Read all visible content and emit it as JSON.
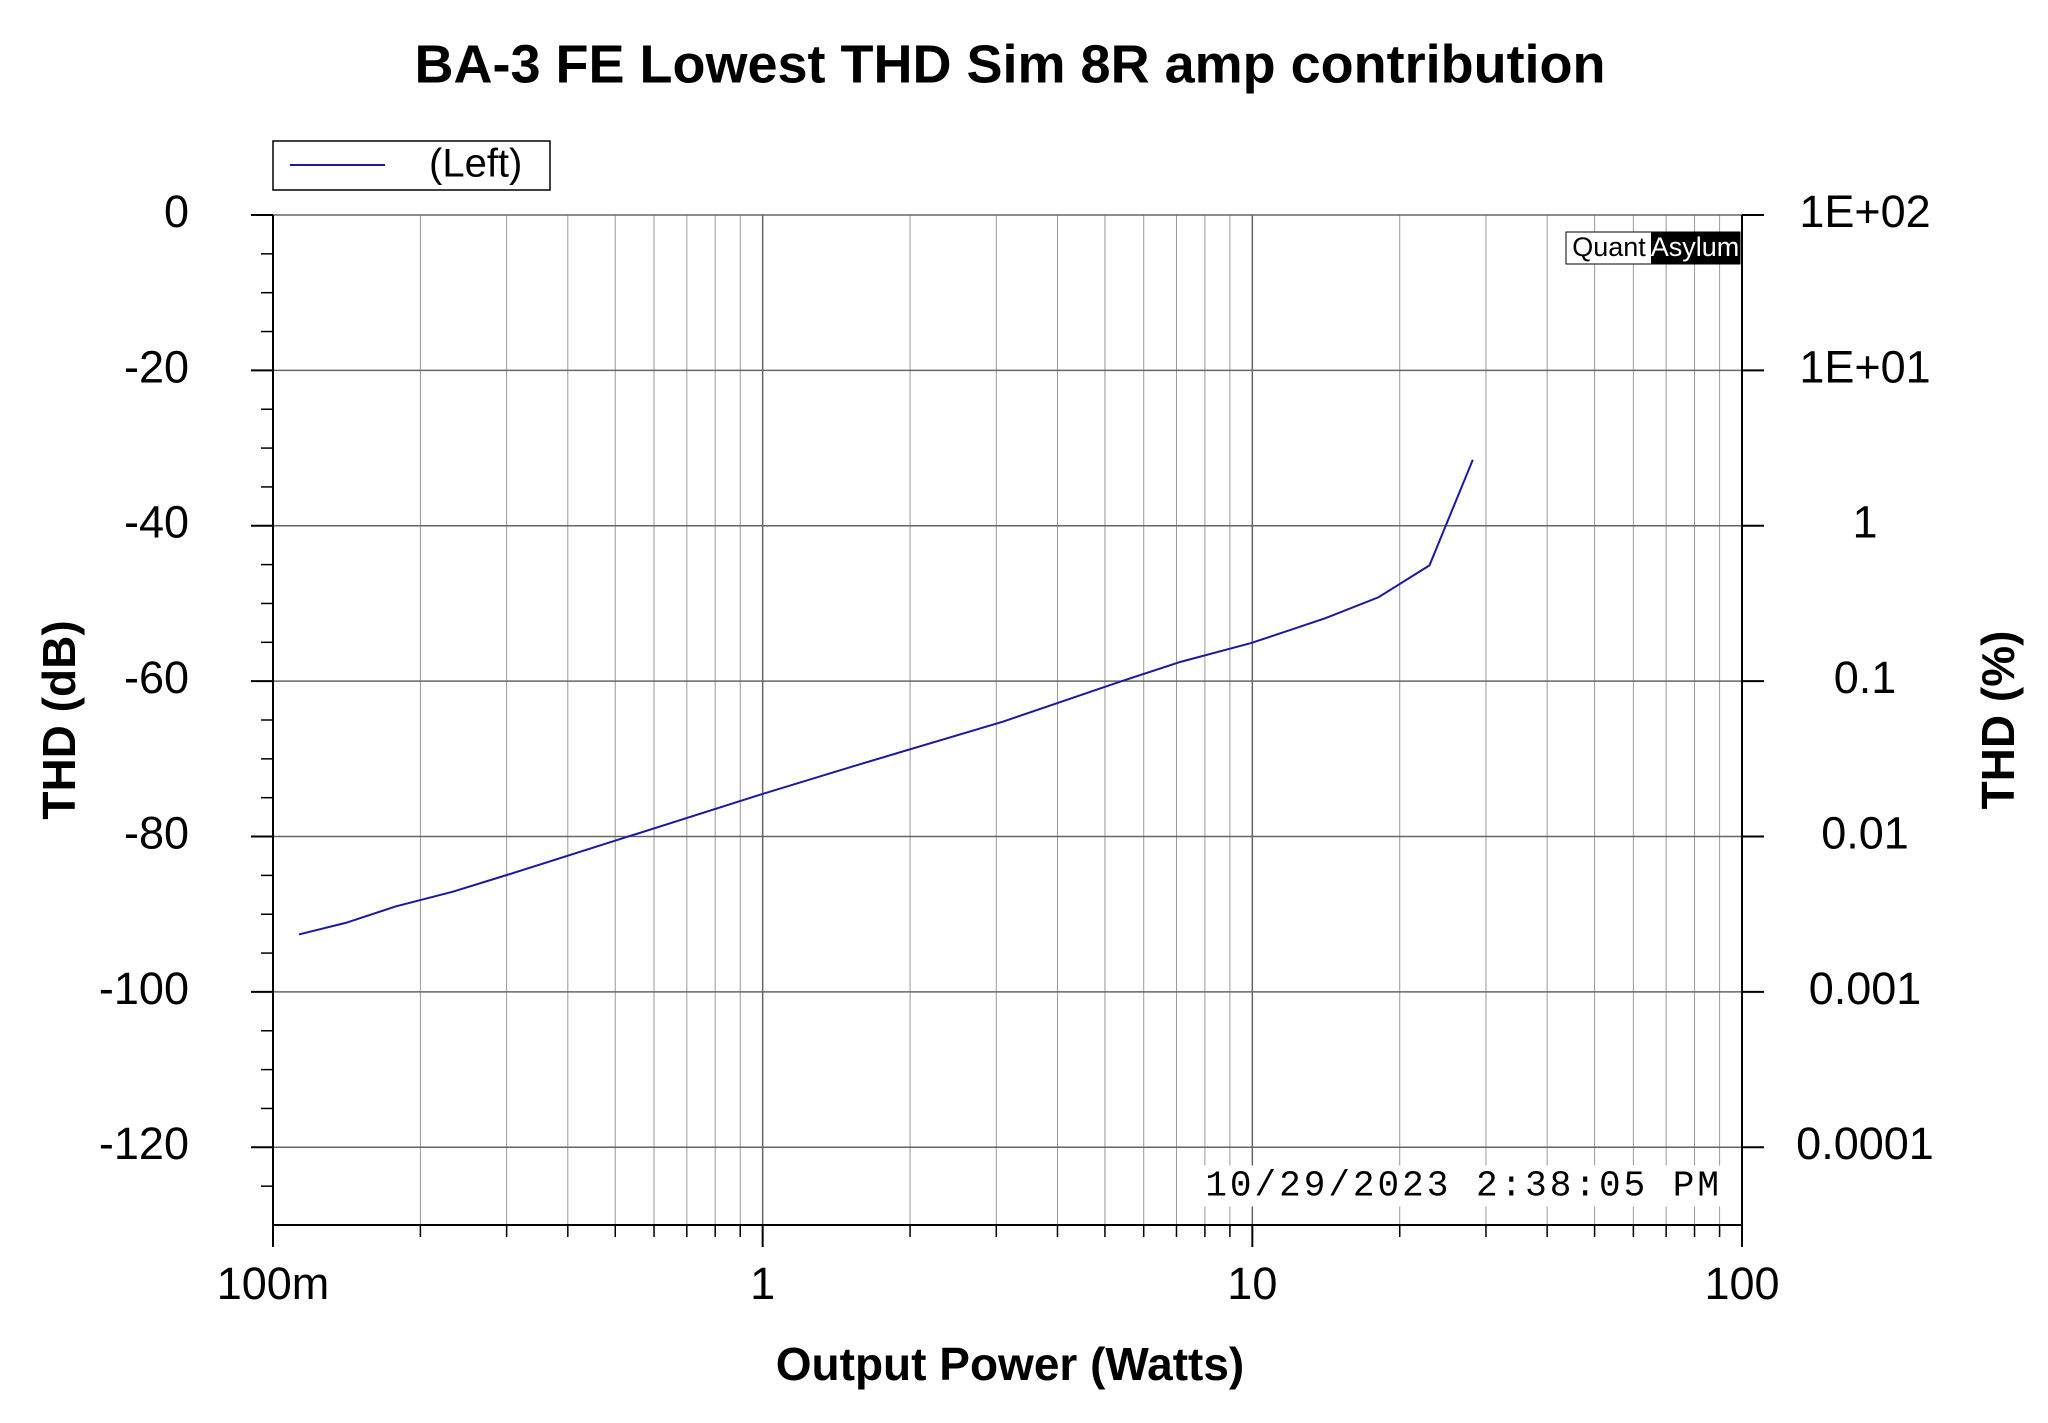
{
  "chart_data": {
    "type": "line",
    "title": "BA-3 FE Lowest THD Sim 8R amp contribution",
    "x_label": "Output Power (Watts)",
    "y_label": "THD (dB)",
    "y2_label": "THD (%)",
    "annotation": "10/29/2023 2:38:05 PM",
    "watermark": [
      "Quant",
      "Asylum"
    ],
    "x_log": true,
    "y2_log": true,
    "grid": true,
    "legend": "top-left",
    "xlim": [
      0.1,
      100
    ],
    "xticks": [
      {
        "value": 0.1,
        "label": "100m"
      },
      1,
      10,
      100
    ],
    "x_minor_ticks": [
      0.2,
      0.3,
      0.4,
      0.5,
      0.6,
      0.7,
      0.8,
      0.9,
      2,
      3,
      4,
      5,
      6,
      7,
      8,
      9,
      20,
      30,
      40,
      50,
      60,
      70,
      80,
      90
    ],
    "ylim": [
      -130,
      0
    ],
    "yticks": [
      0,
      -20,
      -40,
      -60,
      -80,
      -100,
      -120
    ],
    "y_minor_ticks": [
      -5,
      -10,
      -15,
      -25,
      -30,
      -35,
      -45,
      -50,
      -55,
      -65,
      -70,
      -75,
      -85,
      -90,
      -95,
      -105,
      -110,
      -115,
      -125
    ],
    "y2lim": [
      3.162e-05,
      100
    ],
    "y2ticks": [
      {
        "value": 100,
        "label": "1E+02"
      },
      {
        "value": 10,
        "label": "1E+01"
      },
      1,
      0.1,
      0.01,
      0.001,
      0.0001
    ],
    "x": [
      0.113,
      0.141,
      0.178,
      0.233,
      0.302,
      0.544,
      0.99,
      1.56,
      3.1,
      5.35,
      7.15,
      9.94,
      14.1,
      18.1,
      23.0,
      28.2
    ],
    "series": [
      {
        "name": "(Left)",
        "color": "#1a1aa0",
        "values": [
          -92.6,
          -91.1,
          -89.0,
          -87.1,
          -84.9,
          -79.8,
          -74.6,
          -70.8,
          -65.2,
          -60.1,
          -57.5,
          -55.1,
          -51.9,
          -49.2,
          -45.1,
          -31.5
        ]
      }
    ]
  }
}
